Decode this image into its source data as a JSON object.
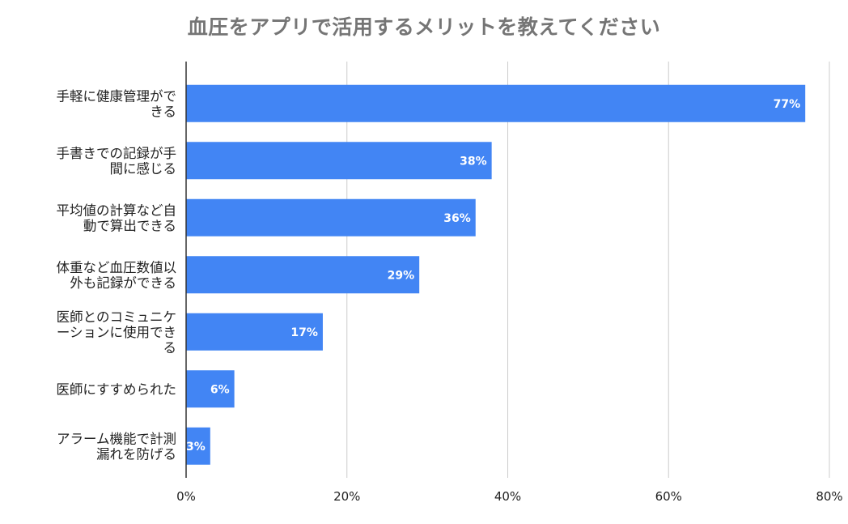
{
  "chart_data": {
    "type": "bar",
    "orientation": "horizontal",
    "title": "血圧をアプリで活用するメリットを教えてください",
    "categories": [
      [
        "手軽に健康管理がで",
        "きる"
      ],
      [
        "手書きでの記録が手",
        "間に感じる"
      ],
      [
        "平均値の計算など自",
        "動で算出できる"
      ],
      [
        "体重など血圧数値以",
        "外も記録ができる"
      ],
      [
        "医師とのコミュニケ",
        "ーションに使用でき",
        "る"
      ],
      [
        "医師にすすめられた"
      ],
      [
        "アラーム機能で計測",
        "漏れを防げる"
      ]
    ],
    "values": [
      77,
      38,
      36,
      29,
      17,
      6,
      3
    ],
    "value_labels": [
      "77%",
      "38%",
      "36%",
      "29%",
      "17%",
      "6%",
      "3%"
    ],
    "xlim": [
      0,
      80
    ],
    "xticks": [
      0,
      20,
      40,
      60,
      80
    ],
    "xtick_labels": [
      "0%",
      "20%",
      "40%",
      "60%",
      "80%"
    ],
    "grid": true,
    "bar_color": "#4285f4",
    "grid_color": "#cccccc"
  }
}
